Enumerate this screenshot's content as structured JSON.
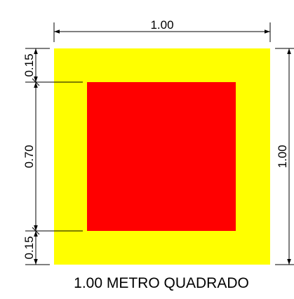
{
  "dimensions": {
    "top_width": "1.00",
    "right_height": "1.00",
    "left_top_margin": "0.15",
    "left_inner": "0.70",
    "left_bottom_margin": "0.15"
  },
  "caption": "1.00 METRO QUADRADO",
  "colors": {
    "outer_fill": "#ffff00",
    "inner_fill": "#ff0000",
    "line": "#000000"
  }
}
